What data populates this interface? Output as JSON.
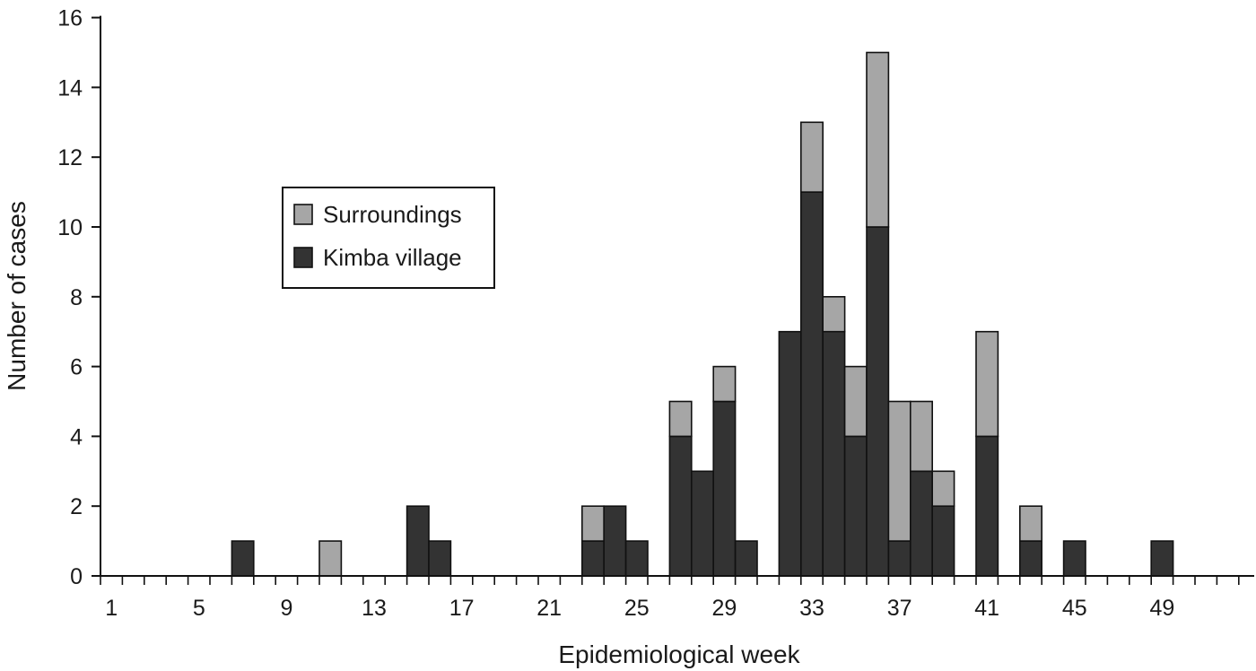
{
  "chart_data": {
    "type": "bar",
    "stacked": true,
    "xlabel": "Epidemiological week",
    "ylabel": "Number of cases",
    "ylim": [
      0,
      16
    ],
    "yticks": [
      0,
      2,
      4,
      6,
      8,
      10,
      12,
      14,
      16
    ],
    "x_range": [
      1,
      53
    ],
    "x_tick_labels": [
      1,
      5,
      9,
      13,
      17,
      21,
      25,
      29,
      33,
      37,
      41,
      45,
      49
    ],
    "legend_position": "upper-left",
    "legend_order": [
      "Surroundings",
      "Kimba village"
    ],
    "weeks": [
      7,
      11,
      15,
      16,
      23,
      24,
      25,
      27,
      28,
      29,
      30,
      32,
      33,
      34,
      35,
      36,
      37,
      38,
      39,
      41,
      43,
      45,
      49
    ],
    "series": [
      {
        "name": "Kimba village",
        "color": "#333333",
        "values": [
          1,
          0,
          2,
          1,
          1,
          2,
          1,
          4,
          3,
          5,
          1,
          7,
          11,
          7,
          4,
          10,
          1,
          3,
          2,
          4,
          1,
          1,
          1
        ]
      },
      {
        "name": "Surroundings",
        "color": "#a6a6a6",
        "values": [
          0,
          1,
          0,
          0,
          1,
          0,
          0,
          1,
          0,
          1,
          0,
          0,
          2,
          1,
          2,
          5,
          4,
          2,
          1,
          3,
          1,
          0,
          0
        ]
      }
    ]
  }
}
